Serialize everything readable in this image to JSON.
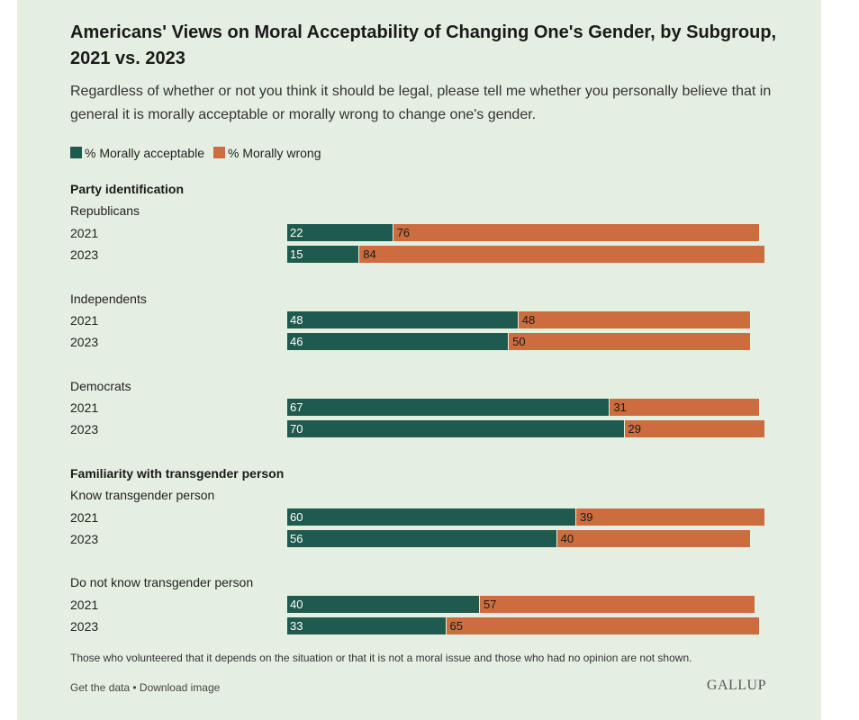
{
  "colors": {
    "background": "#e5efe1",
    "acceptable": "#1f5a4f",
    "wrong": "#cd6d3f"
  },
  "header": {
    "title": "Americans' Views on Moral Acceptability of Changing One's Gender, by Subgroup, 2021 vs. 2023",
    "subtitle": "Regardless of whether or not you think it should be legal, please tell me whether you personally believe that in general it is morally acceptable or morally wrong to change one's gender."
  },
  "chart_data": {
    "type": "bar",
    "orientation": "horizontal",
    "stacked": true,
    "xlim": [
      0,
      100
    ],
    "legend": [
      "% Morally acceptable",
      "% Morally wrong"
    ],
    "series_names": [
      "% Morally acceptable",
      "% Morally wrong"
    ],
    "sections": [
      {
        "heading": "Party identification",
        "groups": [
          {
            "name": "Republicans",
            "rows": [
              {
                "year": "2021",
                "acceptable": 22,
                "wrong": 76
              },
              {
                "year": "2023",
                "acceptable": 15,
                "wrong": 84
              }
            ]
          },
          {
            "name": "Independents",
            "rows": [
              {
                "year": "2021",
                "acceptable": 48,
                "wrong": 48
              },
              {
                "year": "2023",
                "acceptable": 46,
                "wrong": 50
              }
            ]
          },
          {
            "name": "Democrats",
            "rows": [
              {
                "year": "2021",
                "acceptable": 67,
                "wrong": 31
              },
              {
                "year": "2023",
                "acceptable": 70,
                "wrong": 29
              }
            ]
          }
        ]
      },
      {
        "heading": "Familiarity with transgender person",
        "groups": [
          {
            "name": "Know transgender person",
            "rows": [
              {
                "year": "2021",
                "acceptable": 60,
                "wrong": 39
              },
              {
                "year": "2023",
                "acceptable": 56,
                "wrong": 40
              }
            ]
          },
          {
            "name": "Do not know transgender person",
            "rows": [
              {
                "year": "2021",
                "acceptable": 40,
                "wrong": 57
              },
              {
                "year": "2023",
                "acceptable": 33,
                "wrong": 65
              }
            ]
          }
        ]
      }
    ]
  },
  "footer": {
    "footnote": "Those who volunteered that it depends on the situation or that it is not a moral issue and those who had no opinion are not shown.",
    "get_data": "Get the data",
    "separator": " • ",
    "download": "Download image",
    "logo": "GALLUP"
  }
}
